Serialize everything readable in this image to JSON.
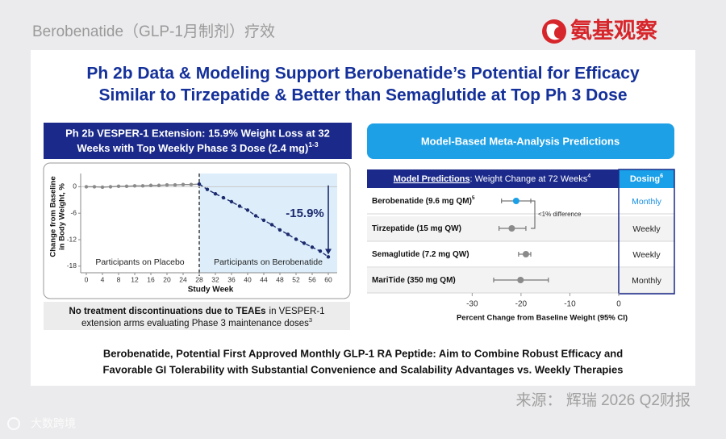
{
  "header": {
    "text": "Berobenatide（GLP-1月制剂）疗效",
    "logo": "氨基观察"
  },
  "title_lines": [
    "Ph 2b Data & Modeling Support Berobenatide’s Potential for Efficacy",
    "Similar to Tirzepatide & Better than Semaglutide at Top Ph 3 Dose"
  ],
  "chart_data": [
    {
      "type": "line",
      "title_lines": [
        "Ph 2b VESPER-1 Extension: 15.9% Weight Loss at 32",
        "Weeks with Top Weekly Phase 3 Dose (2.4 mg)"
      ],
      "title_sup": "1-3",
      "y_label_lines": [
        "Change from Baseline",
        "in Body Weight, %"
      ],
      "x_label": "Study Week",
      "x": [
        0,
        2,
        4,
        6,
        8,
        10,
        12,
        14,
        16,
        18,
        20,
        22,
        24,
        26,
        28,
        30,
        32,
        34,
        36,
        38,
        40,
        42,
        44,
        46,
        48,
        50,
        52,
        54,
        56,
        58,
        60
      ],
      "series": [
        {
          "color": "#8a8a8a",
          "values": [
            0,
            0,
            -0.1,
            0,
            0.1,
            0.1,
            0.2,
            0.2,
            0.3,
            0.3,
            0.4,
            0.4,
            0.5,
            0.5,
            0.6,
            null,
            null,
            null,
            null,
            null,
            null,
            null,
            null,
            null,
            null,
            null,
            null,
            null,
            null,
            null,
            null
          ]
        },
        {
          "color": "#1c2a6e",
          "values": [
            null,
            null,
            null,
            null,
            null,
            null,
            null,
            null,
            null,
            null,
            null,
            null,
            null,
            null,
            0.6,
            -0.6,
            -1.6,
            -2.5,
            -3.4,
            -4.4,
            -5.3,
            -6.6,
            -7.6,
            -8.6,
            -9.8,
            -10.8,
            -11.9,
            -12.8,
            -13.7,
            -14.6,
            -15.9
          ]
        }
      ],
      "xlim": [
        -1.4,
        62.2
      ],
      "xticks": [
        0,
        4,
        8,
        12,
        16,
        20,
        24,
        28,
        32,
        36,
        40,
        44,
        48,
        52,
        56,
        60
      ],
      "ylim": [
        -19.5,
        3
      ],
      "yticks": [
        0,
        -6,
        -12,
        -18
      ],
      "regions": [
        {
          "label": "Participants on Placebo"
        },
        {
          "label": "Participants on Berobenatide",
          "from": 28,
          "color": "#ddeefa"
        }
      ],
      "annotation": "-15.9%"
    },
    {
      "type": "forest",
      "title": "Model-Based Meta-Analysis Predictions",
      "header": {
        "underlined": "Model Predictions",
        "rest": ": Weight Change at 72 Weeks",
        "sup": "4"
      },
      "dosing_header": "Dosing",
      "dosing_header_sup": "6",
      "categories": [
        "Berobenatide (9.6 mg QM)",
        "Tirzepatide (15 mg QW)",
        "Semaglutide (7.2 mg QW)",
        "MariTide (350 mg QM)"
      ],
      "category_sups": {
        "0": "5"
      },
      "values": [
        -21,
        -21.9,
        -19,
        -20.1
      ],
      "ci_low": [
        -24,
        -24.5,
        -20.5,
        -25.6
      ],
      "ci_high": [
        -18,
        -19,
        -18,
        -14.4
      ],
      "colors": [
        "#1aa0e8",
        "#8a8a8a",
        "#8a8a8a",
        "#8a8a8a"
      ],
      "dosing": [
        "Monthly",
        "Weekly",
        "Weekly",
        "Monthly"
      ],
      "dosing_colors": [
        "#1a8fe0",
        "#222222",
        "#222222",
        "#222222"
      ],
      "annotation": "<1% difference",
      "x_label": "Percent Change from Baseline Weight (95% CI)",
      "xlim": [
        -36,
        0
      ],
      "xticks": [
        -30,
        -20,
        -10,
        0
      ]
    }
  ],
  "note": {
    "bold": "No treatment discontinuations due to TEAEs",
    "line1_rest": "in VESPER-1",
    "line2": "extension arms evaluating Phase 3 maintenance doses",
    "sup": "3"
  },
  "footer_lines": [
    "Berobenatide, Potential First Approved Monthly GLP-1 RA Peptide: Aim to Combine Robust Efficacy and",
    "Favorable GI Tolerability with Substantial Convenience and Scalability Advantages vs. Weekly Therapies"
  ],
  "source": "来源： 辉瑞 2026 Q2财报",
  "watermark": "大数跨境"
}
